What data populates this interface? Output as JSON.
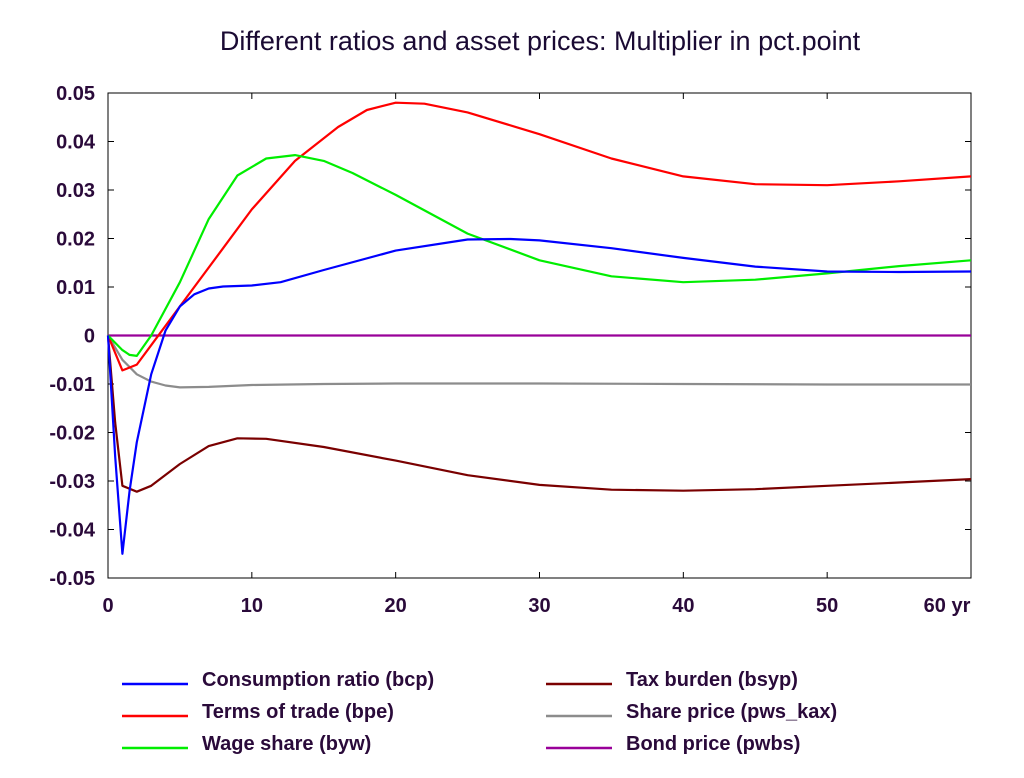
{
  "chart_data": {
    "type": "line",
    "title": "Different ratios and asset prices: Multiplier in pct.point",
    "x_unit_label": "yr",
    "xlim": [
      0,
      60
    ],
    "ylim": [
      -0.05,
      0.05
    ],
    "x_ticks": [
      0,
      10,
      20,
      30,
      40,
      50,
      60
    ],
    "x_tick_labels": [
      "0",
      "10",
      "20",
      "30",
      "40",
      "50",
      "60 yr"
    ],
    "y_ticks": [
      0.05,
      0.04,
      0.03,
      0.02,
      0.01,
      0,
      -0.01,
      -0.02,
      -0.03,
      -0.04,
      -0.05
    ],
    "y_tick_labels": [
      "0.05",
      "0.04",
      "0.03",
      "0.02",
      "0.01",
      "0",
      "-0.01",
      "-0.02",
      "-0.03",
      "-0.04",
      "-0.05"
    ],
    "grid": false,
    "legend_position": "bottom",
    "series": [
      {
        "name": "Consumption ratio (bcp)",
        "color": "#0000ff",
        "points": [
          [
            0,
            0
          ],
          [
            0.5,
            -0.025
          ],
          [
            1,
            -0.045
          ],
          [
            1.5,
            -0.032
          ],
          [
            2,
            -0.022
          ],
          [
            3,
            -0.008
          ],
          [
            4,
            0.001
          ],
          [
            5,
            0.006
          ],
          [
            6,
            0.0085
          ],
          [
            7,
            0.0097
          ],
          [
            8,
            0.0101
          ],
          [
            10,
            0.0103
          ],
          [
            12,
            0.011
          ],
          [
            15,
            0.0135
          ],
          [
            20,
            0.0175
          ],
          [
            25,
            0.0198
          ],
          [
            28,
            0.0199
          ],
          [
            30,
            0.0196
          ],
          [
            35,
            0.018
          ],
          [
            40,
            0.016
          ],
          [
            45,
            0.0142
          ],
          [
            50,
            0.0132
          ],
          [
            55,
            0.0131
          ],
          [
            60,
            0.0132
          ]
        ]
      },
      {
        "name": "Terms of trade (bpe)",
        "color": "#ff0000",
        "points": [
          [
            0,
            0
          ],
          [
            1,
            -0.0072
          ],
          [
            2,
            -0.006
          ],
          [
            3,
            -0.002
          ],
          [
            5,
            0.006
          ],
          [
            8,
            0.018
          ],
          [
            10,
            0.026
          ],
          [
            13,
            0.036
          ],
          [
            16,
            0.043
          ],
          [
            18,
            0.0465
          ],
          [
            20,
            0.048
          ],
          [
            22,
            0.0478
          ],
          [
            25,
            0.046
          ],
          [
            30,
            0.0415
          ],
          [
            35,
            0.0365
          ],
          [
            40,
            0.0328
          ],
          [
            45,
            0.0312
          ],
          [
            50,
            0.031
          ],
          [
            55,
            0.0318
          ],
          [
            60,
            0.0328
          ]
        ]
      },
      {
        "name": "Wage share (byw)",
        "color": "#00ee00",
        "points": [
          [
            0,
            0
          ],
          [
            1,
            -0.003
          ],
          [
            1.5,
            -0.004
          ],
          [
            2,
            -0.0042
          ],
          [
            3,
            0.0
          ],
          [
            5,
            0.011
          ],
          [
            7,
            0.024
          ],
          [
            9,
            0.033
          ],
          [
            11,
            0.0365
          ],
          [
            13,
            0.0372
          ],
          [
            15,
            0.036
          ],
          [
            17,
            0.0335
          ],
          [
            20,
            0.029
          ],
          [
            25,
            0.021
          ],
          [
            30,
            0.0155
          ],
          [
            35,
            0.0122
          ],
          [
            40,
            0.011
          ],
          [
            45,
            0.0115
          ],
          [
            50,
            0.0128
          ],
          [
            55,
            0.0143
          ],
          [
            60,
            0.0155
          ]
        ]
      },
      {
        "name": "Tax burden (bsyp)",
        "color": "#7a0000",
        "points": [
          [
            0,
            0
          ],
          [
            0.5,
            -0.018
          ],
          [
            1,
            -0.031
          ],
          [
            2,
            -0.0322
          ],
          [
            3,
            -0.031
          ],
          [
            5,
            -0.0265
          ],
          [
            7,
            -0.0228
          ],
          [
            9,
            -0.0212
          ],
          [
            11,
            -0.0213
          ],
          [
            15,
            -0.023
          ],
          [
            20,
            -0.0258
          ],
          [
            25,
            -0.0288
          ],
          [
            30,
            -0.0308
          ],
          [
            35,
            -0.0318
          ],
          [
            40,
            -0.032
          ],
          [
            45,
            -0.0317
          ],
          [
            50,
            -0.031
          ],
          [
            55,
            -0.0303
          ],
          [
            60,
            -0.0296
          ]
        ]
      },
      {
        "name": "Share price (pws_kax)",
        "color": "#8c8c8c",
        "points": [
          [
            0,
            0
          ],
          [
            1,
            -0.005
          ],
          [
            2,
            -0.008
          ],
          [
            3,
            -0.0095
          ],
          [
            4,
            -0.0103
          ],
          [
            5,
            -0.0107
          ],
          [
            7,
            -0.0106
          ],
          [
            10,
            -0.0102
          ],
          [
            15,
            -0.01
          ],
          [
            20,
            -0.0099
          ],
          [
            30,
            -0.0099
          ],
          [
            40,
            -0.01
          ],
          [
            50,
            -0.0101
          ],
          [
            60,
            -0.0101
          ]
        ]
      },
      {
        "name": "Bond price (pwbs)",
        "color": "#990099",
        "points": [
          [
            0,
            0
          ],
          [
            60,
            0
          ]
        ]
      }
    ]
  }
}
